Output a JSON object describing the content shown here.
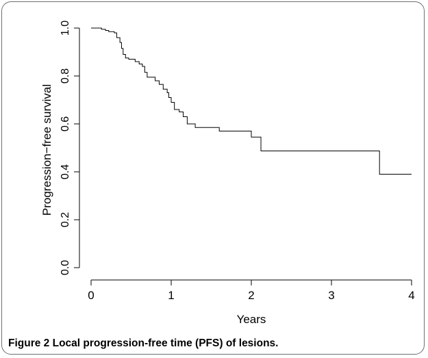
{
  "chart_data": {
    "type": "line",
    "step": true,
    "xlabel": "Years",
    "ylabel": "Progression−free survival",
    "xlim": [
      0,
      4
    ],
    "ylim": [
      0,
      1
    ],
    "xticks": [
      "0",
      "1",
      "2",
      "3",
      "4"
    ],
    "yticks": [
      "0.0",
      "0.2",
      "0.4",
      "0.6",
      "0.8",
      "1.0"
    ],
    "xtick_values": [
      0,
      1,
      2,
      3,
      4
    ],
    "ytick_values": [
      0,
      0.2,
      0.4,
      0.6,
      0.8,
      1.0
    ],
    "series": [
      {
        "x": [
          0,
          0.13,
          0.18,
          0.22,
          0.29,
          0.32,
          0.36,
          0.38,
          0.4,
          0.43,
          0.47,
          0.55,
          0.6,
          0.64,
          0.67,
          0.7,
          0.8,
          0.85,
          0.9,
          0.95,
          0.97,
          1.0,
          1.04,
          1.1,
          1.15,
          1.2,
          1.3,
          1.6,
          2.0,
          2.12,
          3.6,
          4.0
        ],
        "y": [
          1.0,
          0.995,
          0.99,
          0.985,
          0.98,
          0.96,
          0.94,
          0.915,
          0.89,
          0.875,
          0.87,
          0.86,
          0.85,
          0.84,
          0.815,
          0.795,
          0.78,
          0.765,
          0.745,
          0.73,
          0.71,
          0.69,
          0.66,
          0.65,
          0.63,
          0.6,
          0.585,
          0.57,
          0.545,
          0.487,
          0.39,
          0.39
        ]
      }
    ]
  },
  "caption": {
    "label": "Figure 2",
    "text": "Local progression-free time (PFS) of lesions."
  }
}
